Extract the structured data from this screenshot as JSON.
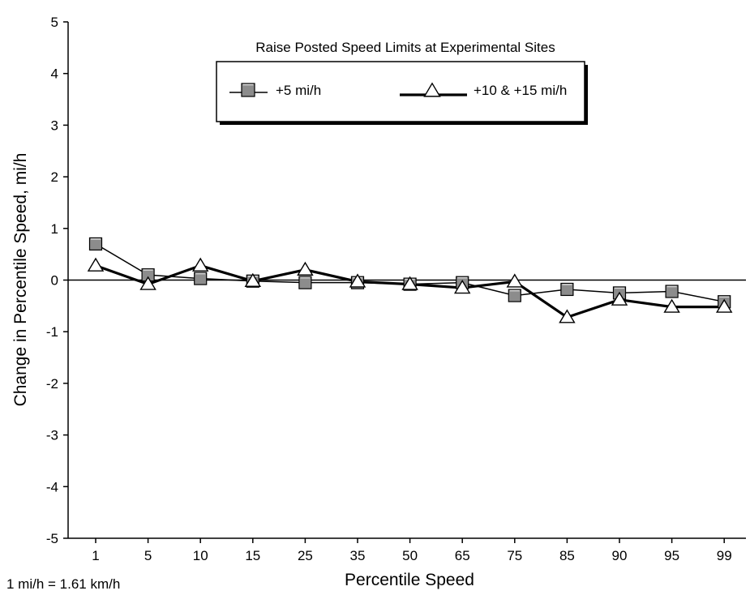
{
  "chart_data": {
    "type": "line",
    "legend_title": "Raise Posted Speed Limits at Experimental Sites",
    "categories": [
      "1",
      "5",
      "10",
      "15",
      "25",
      "35",
      "50",
      "65",
      "75",
      "85",
      "90",
      "95",
      "99"
    ],
    "series": [
      {
        "name": "+5 mi/h",
        "marker": "square",
        "color": "#808080",
        "values": [
          0.7,
          0.1,
          0.03,
          -0.02,
          -0.05,
          -0.05,
          -0.08,
          -0.05,
          -0.3,
          -0.18,
          -0.25,
          -0.22,
          -0.42
        ]
      },
      {
        "name": "+10 & +15 mi/h",
        "marker": "triangle",
        "color": "#ffffff",
        "values": [
          0.28,
          -0.08,
          0.28,
          -0.02,
          0.2,
          -0.03,
          -0.08,
          -0.15,
          -0.03,
          -0.72,
          -0.38,
          -0.52,
          -0.52
        ]
      }
    ],
    "xlabel": "Percentile Speed",
    "ylabel": "Change in Percentile Speed, mi/h",
    "ylim": [
      -5,
      5
    ],
    "yticks": [
      "5",
      "4",
      "3",
      "2",
      "1",
      "0",
      "-1",
      "-2",
      "-3",
      "-4",
      "-5"
    ],
    "grid": false,
    "legend_position": "top-center",
    "note": "1 mi/h = 1.61 km/h"
  }
}
